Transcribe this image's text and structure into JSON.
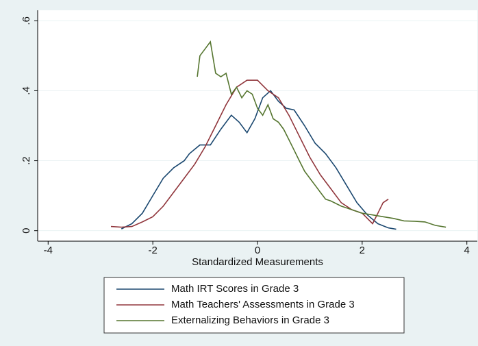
{
  "chart_data": {
    "type": "line",
    "xlabel": "Standardized Measurements",
    "xlim": [
      -4.2,
      4.2
    ],
    "xticks": [
      -4,
      -2,
      0,
      2,
      4
    ],
    "ylim": [
      -0.03,
      0.63
    ],
    "yticks": [
      0,
      {
        "value": 0.2,
        "label": ".2"
      },
      {
        "value": 0.4,
        "label": ".4"
      },
      {
        "value": 0.6,
        "label": ".6"
      }
    ],
    "grid": true,
    "series": [
      {
        "name": "Math IRT Scores in Grade 3",
        "color": "#1a476f",
        "x": [
          -2.6,
          -2.4,
          -2.2,
          -2.0,
          -1.8,
          -1.6,
          -1.4,
          -1.3,
          -1.1,
          -0.9,
          -0.7,
          -0.5,
          -0.35,
          -0.2,
          -0.05,
          0.1,
          0.25,
          0.4,
          0.55,
          0.7,
          0.9,
          1.1,
          1.3,
          1.5,
          1.7,
          1.9,
          2.1,
          2.3,
          2.5,
          2.65
        ],
        "values": [
          0.005,
          0.02,
          0.05,
          0.1,
          0.15,
          0.18,
          0.2,
          0.22,
          0.245,
          0.245,
          0.29,
          0.33,
          0.31,
          0.28,
          0.32,
          0.38,
          0.4,
          0.37,
          0.35,
          0.345,
          0.3,
          0.25,
          0.22,
          0.18,
          0.13,
          0.08,
          0.045,
          0.02,
          0.008,
          0.004
        ]
      },
      {
        "name": "Math Teachers' Assessments in Grade 3",
        "color": "#90353b",
        "x": [
          -2.8,
          -2.6,
          -2.4,
          -2.2,
          -2.0,
          -1.8,
          -1.6,
          -1.4,
          -1.2,
          -1.0,
          -0.8,
          -0.6,
          -0.4,
          -0.2,
          0,
          0.2,
          0.4,
          0.6,
          0.8,
          1.0,
          1.2,
          1.4,
          1.6,
          1.8,
          2.0,
          2.2,
          2.3,
          2.4,
          2.5
        ],
        "values": [
          0.012,
          0.01,
          0.012,
          0.025,
          0.04,
          0.07,
          0.11,
          0.15,
          0.19,
          0.24,
          0.3,
          0.36,
          0.41,
          0.43,
          0.43,
          0.4,
          0.38,
          0.33,
          0.27,
          0.21,
          0.16,
          0.12,
          0.08,
          0.06,
          0.05,
          0.02,
          0.05,
          0.08,
          0.09
        ]
      },
      {
        "name": "Externalizing Behaviors in Grade 3",
        "color": "#55752f",
        "x": [
          -1.15,
          -1.1,
          -1.0,
          -0.9,
          -0.8,
          -0.7,
          -0.6,
          -0.5,
          -0.4,
          -0.3,
          -0.2,
          -0.1,
          0,
          0.1,
          0.2,
          0.3,
          0.4,
          0.5,
          0.6,
          0.7,
          0.8,
          0.9,
          1.0,
          1.1,
          1.2,
          1.3,
          1.4,
          1.6,
          1.8,
          2.0,
          2.2,
          2.4,
          2.6,
          2.8,
          3.0,
          3.2,
          3.4,
          3.6
        ],
        "values": [
          0.44,
          0.5,
          0.52,
          0.54,
          0.45,
          0.44,
          0.45,
          0.39,
          0.41,
          0.38,
          0.4,
          0.39,
          0.35,
          0.33,
          0.36,
          0.32,
          0.31,
          0.29,
          0.26,
          0.23,
          0.2,
          0.17,
          0.15,
          0.13,
          0.11,
          0.09,
          0.085,
          0.07,
          0.06,
          0.05,
          0.045,
          0.04,
          0.035,
          0.028,
          0.027,
          0.025,
          0.015,
          0.01
        ]
      }
    ]
  }
}
